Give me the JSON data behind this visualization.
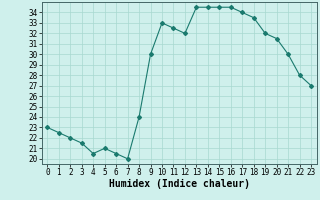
{
  "x": [
    0,
    1,
    2,
    3,
    4,
    5,
    6,
    7,
    8,
    9,
    10,
    11,
    12,
    13,
    14,
    15,
    16,
    17,
    18,
    19,
    20,
    21,
    22,
    23
  ],
  "y": [
    23,
    22.5,
    22,
    21.5,
    20.5,
    21,
    20.5,
    20,
    24,
    30,
    33,
    32.5,
    32,
    34.5,
    34.5,
    34.5,
    34.5,
    34,
    33.5,
    32,
    31.5,
    30,
    28,
    27
  ],
  "xlabel": "Humidex (Indice chaleur)",
  "ylim": [
    19.5,
    35
  ],
  "xlim": [
    -0.5,
    23.5
  ],
  "line_color": "#1a7a6e",
  "bg_color": "#cff0ec",
  "grid_color": "#a8d8d0",
  "xticks": [
    0,
    1,
    2,
    3,
    4,
    5,
    6,
    7,
    8,
    9,
    10,
    11,
    12,
    13,
    14,
    15,
    16,
    17,
    18,
    19,
    20,
    21,
    22,
    23
  ],
  "yticks": [
    20,
    21,
    22,
    23,
    24,
    25,
    26,
    27,
    28,
    29,
    30,
    31,
    32,
    33,
    34
  ],
  "xlabel_fontsize": 7,
  "tick_fontsize": 5.5
}
